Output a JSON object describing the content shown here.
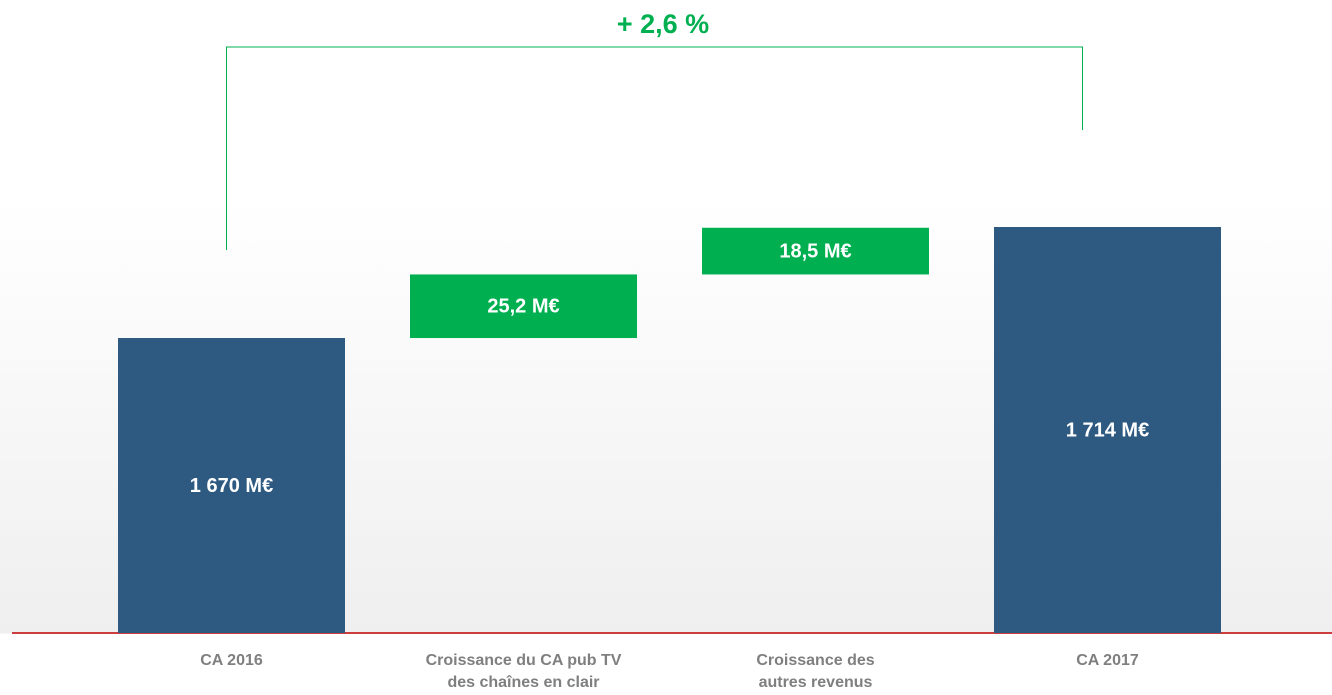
{
  "chart_data": {
    "type": "waterfall",
    "annotation": "+ 2,6 %",
    "categories": [
      "CA 2016",
      "Croissance du CA pub TV\ndes chaînes en clair",
      "Croissance des\nautres revenus",
      "CA 2017"
    ],
    "values": [
      1670,
      25.2,
      18.5,
      1714
    ],
    "value_labels": [
      "1 670 M€",
      "25,2 M€",
      "18,5 M€",
      "1 714 M€"
    ],
    "kinds": [
      "total",
      "delta",
      "delta",
      "total"
    ],
    "colors": {
      "total": "#2e5981",
      "delta": "#00b050"
    },
    "annotation_color": "#00b050",
    "baseline_color": "#c00000"
  }
}
